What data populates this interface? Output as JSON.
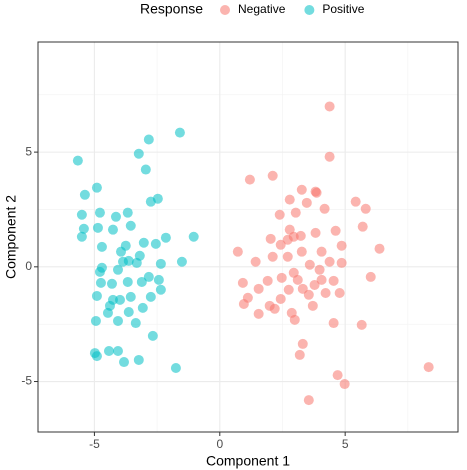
{
  "chart_data": {
    "type": "scatter",
    "x_label": "Component 1",
    "y_label": "Component 2",
    "legend_title": "Response",
    "legend_position": "top",
    "xlim": [
      -7.25,
      9.5
    ],
    "ylim": [
      -7.2,
      9.8
    ],
    "xticks": [
      -5,
      0,
      5
    ],
    "yticks": [
      -5,
      0,
      5
    ],
    "x_minor": [
      -2.5,
      2.5,
      7.5
    ],
    "y_minor": [
      -2.5,
      2.5,
      7.5
    ],
    "grid": true,
    "series": [
      {
        "name": "Negative",
        "color": "#F8766D",
        "x": [
          4.38,
          4.38,
          1.2,
          2.11,
          3.27,
          3.82,
          3.86,
          2.79,
          3.47,
          2.39,
          3.03,
          4.18,
          5.42,
          5.82,
          5.7,
          0.72,
          2.03,
          2.71,
          2.95,
          3.23,
          3.82,
          4.62,
          4.86,
          2.79,
          2.43,
          6.37,
          4.06,
          3.27,
          2.71,
          1.43,
          2.11,
          4.38,
          3.59,
          3.98,
          2.95,
          3.11,
          2.47,
          1.91,
          0.92,
          1.55,
          3.78,
          4.54,
          3.31,
          2.75,
          3.55,
          1.12,
          2.43,
          4.22,
          4.78,
          6.02,
          0.96,
          1.99,
          2.87,
          3.71,
          5.66,
          2.19,
          2.99,
          3.19,
          3.31,
          4.54,
          4.7,
          4.98,
          3.55,
          8.33,
          1.55,
          4.06,
          4.86
        ],
        "values": [
          6.99,
          4.8,
          3.8,
          3.97,
          3.36,
          3.28,
          3.23,
          2.93,
          2.79,
          2.27,
          2.36,
          2.53,
          2.84,
          2.53,
          1.75,
          0.66,
          1.22,
          1.18,
          1.31,
          1.35,
          1.48,
          1.57,
          0.92,
          1.62,
          0.96,
          0.79,
          0.66,
          0.66,
          0.44,
          0.22,
          0.44,
          0.22,
          0.09,
          -0.13,
          -0.26,
          -0.57,
          -0.48,
          -0.61,
          -0.7,
          -0.96,
          -0.79,
          -0.61,
          -0.96,
          -1.0,
          -1.22,
          -1.35,
          -1.4,
          -1.14,
          -1.14,
          -0.44,
          -1.62,
          -1.7,
          -2.01,
          -1.7,
          -2.53,
          -1.83,
          -2.31,
          -3.84,
          -3.36,
          -2.45,
          -4.72,
          -5.11,
          -5.81,
          -4.37,
          -2.05,
          -0.57,
          0.17
        ]
      },
      {
        "name": "Positive",
        "color": "#00BFC4",
        "x": [
          -5.66,
          -1.59,
          -2.83,
          -3.23,
          -5.38,
          -4.9,
          -2.95,
          -5.5,
          -4.78,
          -4.14,
          -3.67,
          -2.75,
          -2.47,
          -5.5,
          -5.42,
          -4.86,
          -4.26,
          -3.55,
          -3.75,
          -3.03,
          -2.55,
          -2.15,
          -1.04,
          -4.7,
          -3.94,
          -3.19,
          -3.86,
          -3.63,
          -4.7,
          -4.78,
          -4.06,
          -3.31,
          -2.35,
          -1.51,
          -2.83,
          -2.43,
          -4.74,
          -4.3,
          -3.67,
          -3.11,
          -2.35,
          -4.9,
          -4.26,
          -3.98,
          -3.55,
          -2.75,
          -4.46,
          -3.63,
          -3.07,
          -4.94,
          -4.06,
          -3.35,
          -2.67,
          -4.98,
          -4.9,
          -4.42,
          -4.06,
          -3.82,
          -3.23,
          -4.38,
          -1.75
        ],
        "values": [
          4.63,
          5.85,
          5.55,
          4.93,
          3.14,
          3.45,
          4.24,
          2.27,
          2.36,
          2.18,
          2.36,
          2.84,
          2.97,
          1.31,
          1.66,
          1.7,
          1.62,
          1.79,
          0.92,
          1.05,
          1.0,
          1.27,
          1.31,
          0.87,
          0.66,
          0.48,
          0.22,
          0.26,
          -0.04,
          -0.22,
          -0.13,
          0.17,
          0.13,
          0.22,
          -0.44,
          -0.57,
          -0.7,
          -0.74,
          -0.66,
          -0.66,
          -1.0,
          -1.27,
          -1.44,
          -1.44,
          -1.31,
          -1.31,
          -2.01,
          -1.97,
          -1.79,
          -2.36,
          -2.36,
          -2.45,
          -3.01,
          -3.76,
          -3.89,
          -3.67,
          -3.67,
          -4.15,
          -4.06,
          -1.7,
          -4.41
        ]
      }
    ]
  }
}
